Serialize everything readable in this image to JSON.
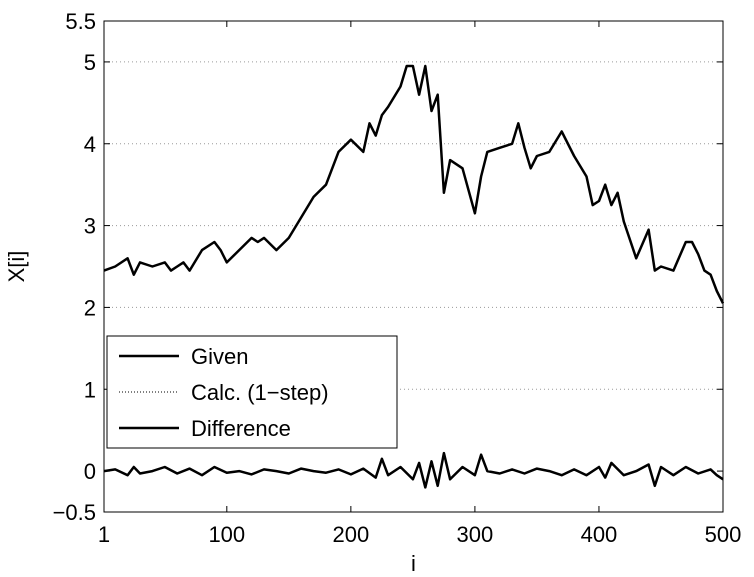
{
  "chart_data": {
    "type": "line",
    "title": "",
    "xlabel": "i",
    "ylabel": "X[i]",
    "xlim": [
      1,
      500
    ],
    "ylim": [
      -0.5,
      5.5
    ],
    "xticks": [
      1,
      100,
      200,
      300,
      400,
      500
    ],
    "xtick_labels": [
      "1",
      "100",
      "200",
      "300",
      "400",
      "500"
    ],
    "yticks": [
      -0.5,
      0,
      1,
      2,
      3,
      4,
      5,
      5.5
    ],
    "ytick_labels": [
      "−0.5",
      "0",
      "1",
      "2",
      "3",
      "4",
      "5",
      "5.5"
    ],
    "grid": "horizontal dotted at 1, 2, 3, 4, 5",
    "legend_position": "lower-left",
    "series": [
      {
        "name": "Given",
        "style": "solid",
        "color": "#000000",
        "x": [
          1,
          10,
          20,
          25,
          30,
          40,
          50,
          55,
          60,
          65,
          70,
          80,
          90,
          95,
          100,
          110,
          120,
          125,
          130,
          140,
          150,
          160,
          170,
          180,
          190,
          200,
          210,
          215,
          220,
          225,
          230,
          240,
          245,
          250,
          255,
          260,
          265,
          270,
          275,
          280,
          290,
          300,
          305,
          310,
          320,
          330,
          335,
          340,
          345,
          350,
          360,
          370,
          380,
          390,
          395,
          400,
          405,
          410,
          415,
          420,
          430,
          440,
          445,
          450,
          460,
          470,
          475,
          480,
          485,
          490,
          495,
          500
        ],
        "y": [
          2.45,
          2.5,
          2.6,
          2.4,
          2.55,
          2.5,
          2.55,
          2.45,
          2.5,
          2.55,
          2.45,
          2.7,
          2.8,
          2.7,
          2.55,
          2.7,
          2.85,
          2.8,
          2.85,
          2.7,
          2.85,
          3.1,
          3.35,
          3.5,
          3.9,
          4.05,
          3.9,
          4.25,
          4.1,
          4.35,
          4.45,
          4.7,
          4.95,
          4.95,
          4.6,
          4.95,
          4.4,
          4.6,
          3.4,
          3.8,
          3.7,
          3.15,
          3.6,
          3.9,
          3.95,
          4.0,
          4.25,
          3.95,
          3.7,
          3.85,
          3.9,
          4.15,
          3.85,
          3.6,
          3.25,
          3.3,
          3.5,
          3.25,
          3.4,
          3.05,
          2.6,
          2.95,
          2.45,
          2.5,
          2.45,
          2.8,
          2.8,
          2.65,
          2.45,
          2.4,
          2.2,
          2.05
        ]
      },
      {
        "name": "Calc. (1−step)",
        "style": "dotted",
        "color": "#000000",
        "x": [
          1,
          10,
          20,
          25,
          30,
          40,
          50,
          55,
          60,
          65,
          70,
          80,
          90,
          95,
          100,
          110,
          120,
          125,
          130,
          140,
          150,
          160,
          170,
          180,
          190,
          200,
          210,
          215,
          220,
          225,
          230,
          240,
          245,
          250,
          255,
          260,
          265,
          270,
          275,
          280,
          290,
          300,
          305,
          310,
          320,
          330,
          335,
          340,
          345,
          350,
          360,
          370,
          380,
          390,
          395,
          400,
          405,
          410,
          415,
          420,
          430,
          440,
          445,
          450,
          460,
          470,
          475,
          480,
          485,
          490,
          495,
          500
        ],
        "y": [
          2.45,
          2.5,
          2.6,
          2.4,
          2.55,
          2.5,
          2.55,
          2.45,
          2.5,
          2.55,
          2.45,
          2.7,
          2.8,
          2.7,
          2.55,
          2.7,
          2.85,
          2.8,
          2.85,
          2.7,
          2.85,
          3.1,
          3.35,
          3.5,
          3.9,
          4.05,
          3.9,
          4.25,
          4.1,
          4.35,
          4.45,
          4.7,
          4.95,
          4.95,
          4.6,
          4.95,
          4.4,
          4.6,
          3.4,
          3.8,
          3.7,
          3.15,
          3.6,
          3.9,
          3.95,
          4.0,
          4.25,
          3.95,
          3.7,
          3.85,
          3.9,
          4.15,
          3.85,
          3.6,
          3.25,
          3.3,
          3.5,
          3.25,
          3.4,
          3.05,
          2.6,
          2.95,
          2.45,
          2.5,
          2.45,
          2.8,
          2.8,
          2.65,
          2.45,
          2.4,
          2.2,
          2.05
        ]
      },
      {
        "name": "Difference",
        "style": "solid",
        "color": "#000000",
        "x": [
          1,
          10,
          20,
          25,
          30,
          40,
          50,
          60,
          70,
          80,
          90,
          100,
          110,
          120,
          130,
          140,
          150,
          160,
          170,
          180,
          190,
          200,
          210,
          220,
          225,
          230,
          240,
          250,
          255,
          260,
          265,
          270,
          275,
          280,
          290,
          300,
          305,
          310,
          320,
          330,
          340,
          350,
          360,
          370,
          380,
          390,
          400,
          405,
          410,
          420,
          430,
          440,
          445,
          450,
          460,
          470,
          480,
          490,
          495,
          500
        ],
        "y": [
          0.0,
          0.02,
          -0.05,
          0.05,
          -0.03,
          0.0,
          0.05,
          -0.03,
          0.03,
          -0.05,
          0.05,
          -0.02,
          0.0,
          -0.04,
          0.02,
          0.0,
          -0.03,
          0.03,
          0.0,
          -0.02,
          0.02,
          -0.04,
          0.03,
          -0.08,
          0.15,
          -0.05,
          0.05,
          -0.1,
          0.1,
          -0.2,
          0.12,
          -0.18,
          0.22,
          -0.1,
          0.05,
          -0.05,
          0.2,
          0.0,
          -0.03,
          0.02,
          -0.03,
          0.03,
          0.0,
          -0.05,
          0.02,
          -0.05,
          0.05,
          -0.08,
          0.1,
          -0.05,
          0.0,
          0.08,
          -0.18,
          0.05,
          -0.05,
          0.05,
          -0.03,
          0.02,
          -0.05,
          -0.1
        ]
      }
    ]
  }
}
